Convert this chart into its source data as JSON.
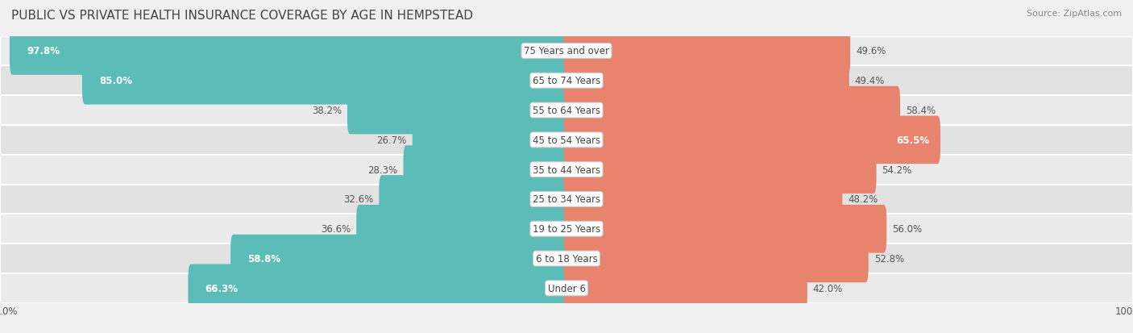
{
  "title": "PUBLIC VS PRIVATE HEALTH INSURANCE COVERAGE BY AGE IN HEMPSTEAD",
  "source": "Source: ZipAtlas.com",
  "categories": [
    "Under 6",
    "6 to 18 Years",
    "19 to 25 Years",
    "25 to 34 Years",
    "35 to 44 Years",
    "45 to 54 Years",
    "55 to 64 Years",
    "65 to 74 Years",
    "75 Years and over"
  ],
  "public_values": [
    66.3,
    58.8,
    36.6,
    32.6,
    28.3,
    26.7,
    38.2,
    85.0,
    97.8
  ],
  "private_values": [
    42.0,
    52.8,
    56.0,
    48.2,
    54.2,
    65.5,
    58.4,
    49.4,
    49.6
  ],
  "public_color": "#5bbcb8",
  "private_color": "#e8846e",
  "bg_color": "#f0f0f0",
  "row_color_even": "#ebebeb",
  "row_color_odd": "#e2e2e2",
  "bar_height": 0.62,
  "title_fontsize": 11,
  "label_fontsize": 8.5,
  "category_fontsize": 8.5,
  "legend_fontsize": 9,
  "source_fontsize": 8
}
